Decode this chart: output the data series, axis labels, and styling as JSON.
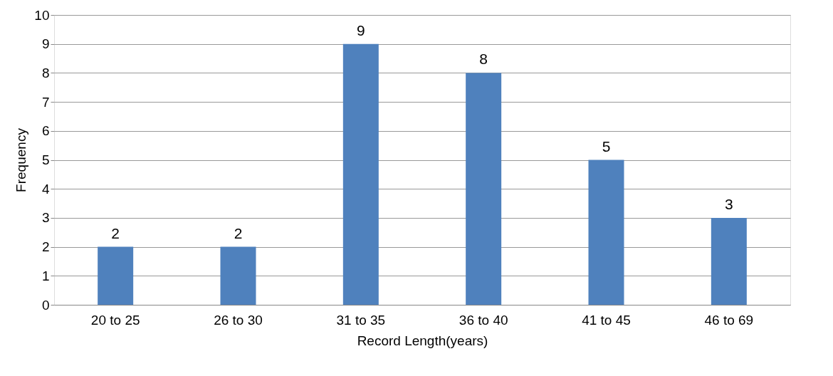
{
  "chart_data": {
    "type": "bar",
    "xlabel": "Record Length(years)",
    "ylabel": "Frequency",
    "categories": [
      "20 to 25",
      "26 to 30",
      "31 to 35",
      "36 to 40",
      "41 to 45",
      "46 to 69"
    ],
    "values": [
      2,
      2,
      9,
      8,
      5,
      3
    ],
    "color": "#4f81bd",
    "ylim": [
      0,
      10
    ],
    "yticks": [
      0,
      1,
      2,
      3,
      4,
      5,
      6,
      7,
      8,
      9,
      10
    ],
    "grid": "y",
    "data_labels": true
  }
}
